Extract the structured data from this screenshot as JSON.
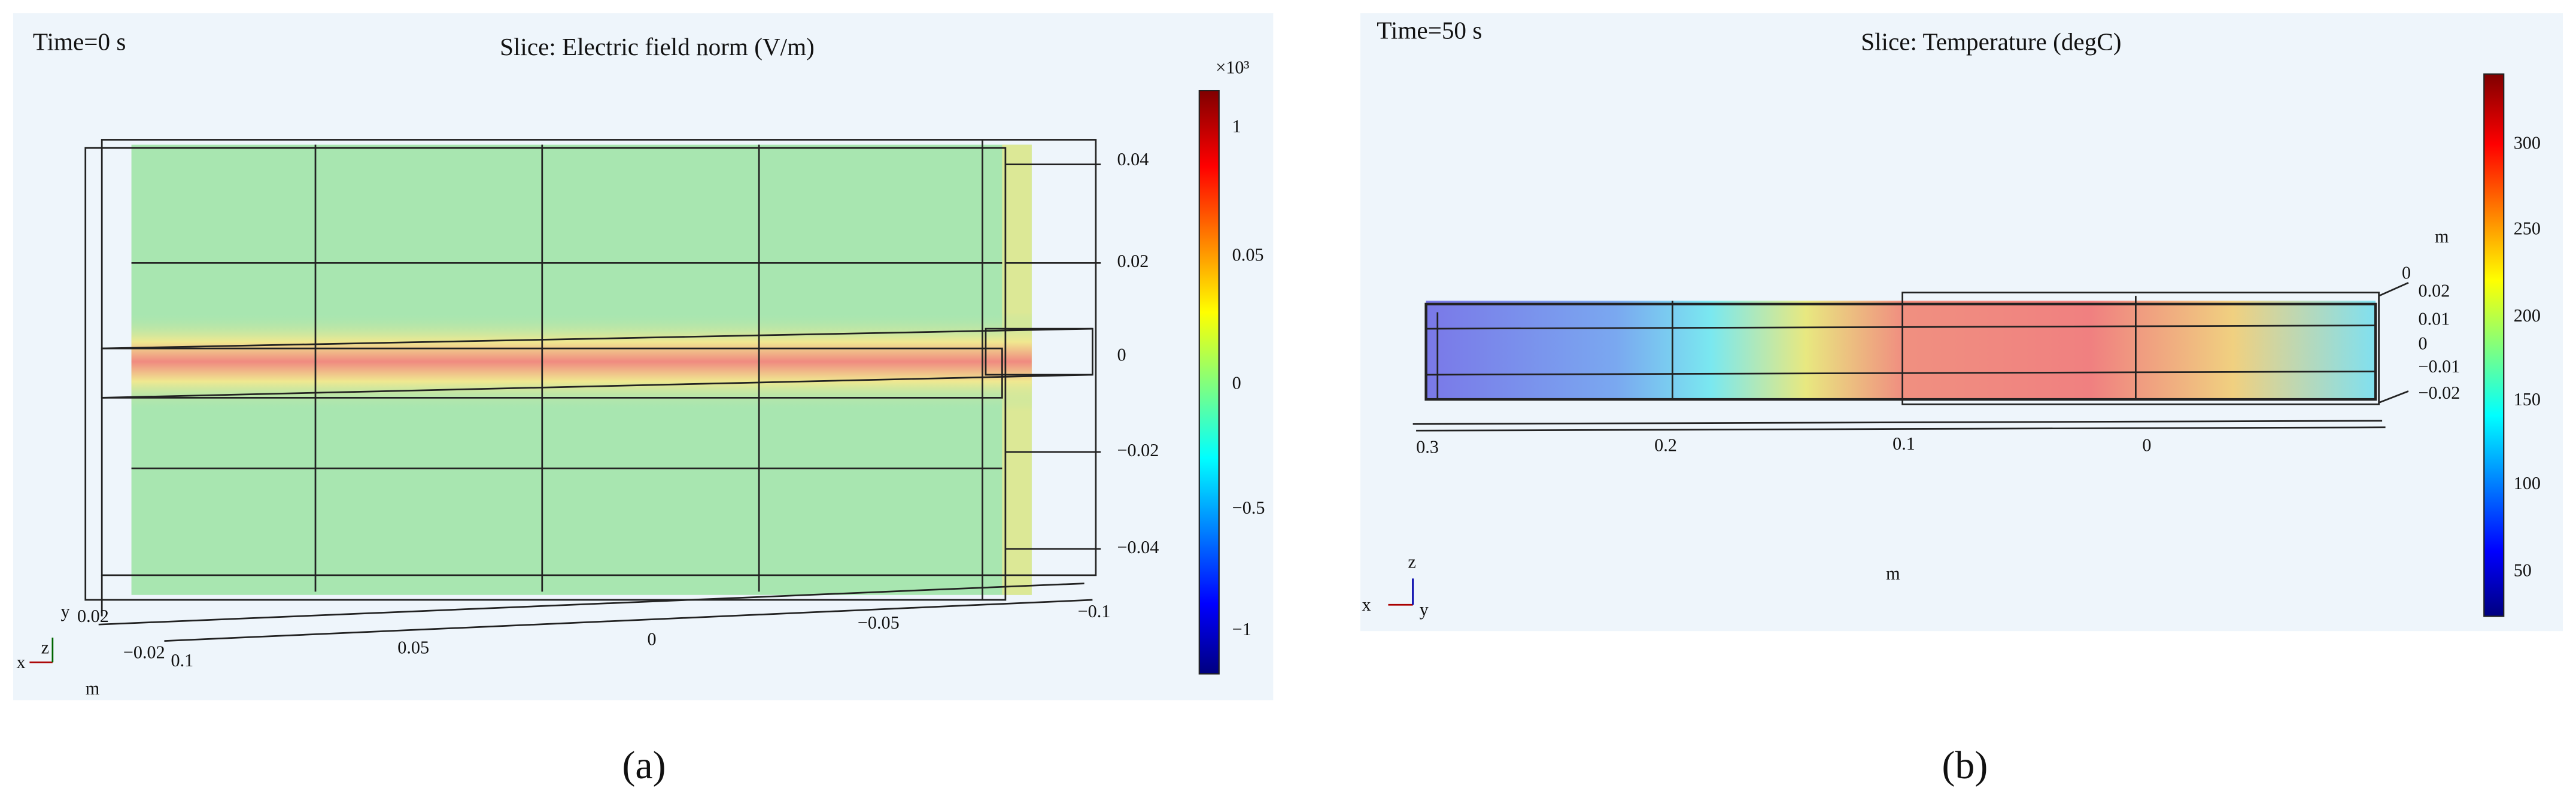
{
  "panel_a": {
    "time": "Time=0 s",
    "title": "Slice: Electric field norm (V/m)",
    "colorbar": {
      "multiplier": "×10³",
      "ticks": [
        "1",
        "0.05",
        "0",
        "−0.5",
        "−1"
      ]
    },
    "right_axis": [
      "0.04",
      "0.02",
      "0",
      "−0.02",
      "−0.04",
      "−0.1"
    ],
    "bottom_axis": [
      "0.1",
      "0.05",
      "0",
      "−0.05"
    ],
    "left_axis": [
      "0.02",
      "−0.02"
    ],
    "unit": "m",
    "triad": [
      "x",
      "y",
      "z"
    ],
    "caption": "(a)"
  },
  "panel_b": {
    "time": "Time=50 s",
    "title": "Slice: Temperature (degC)",
    "colorbar": {
      "ticks": [
        "300",
        "250",
        "200",
        "150",
        "100",
        "50"
      ]
    },
    "unit_right": "m",
    "right_axis": [
      "0",
      "0.02",
      "0.01",
      "0",
      "−0.01",
      "−0.02"
    ],
    "bottom_axis": [
      "0.3",
      "0.2",
      "0.1",
      "0"
    ],
    "unit": "m",
    "triad": [
      "z",
      "x",
      "y"
    ],
    "caption": "(b)"
  }
}
